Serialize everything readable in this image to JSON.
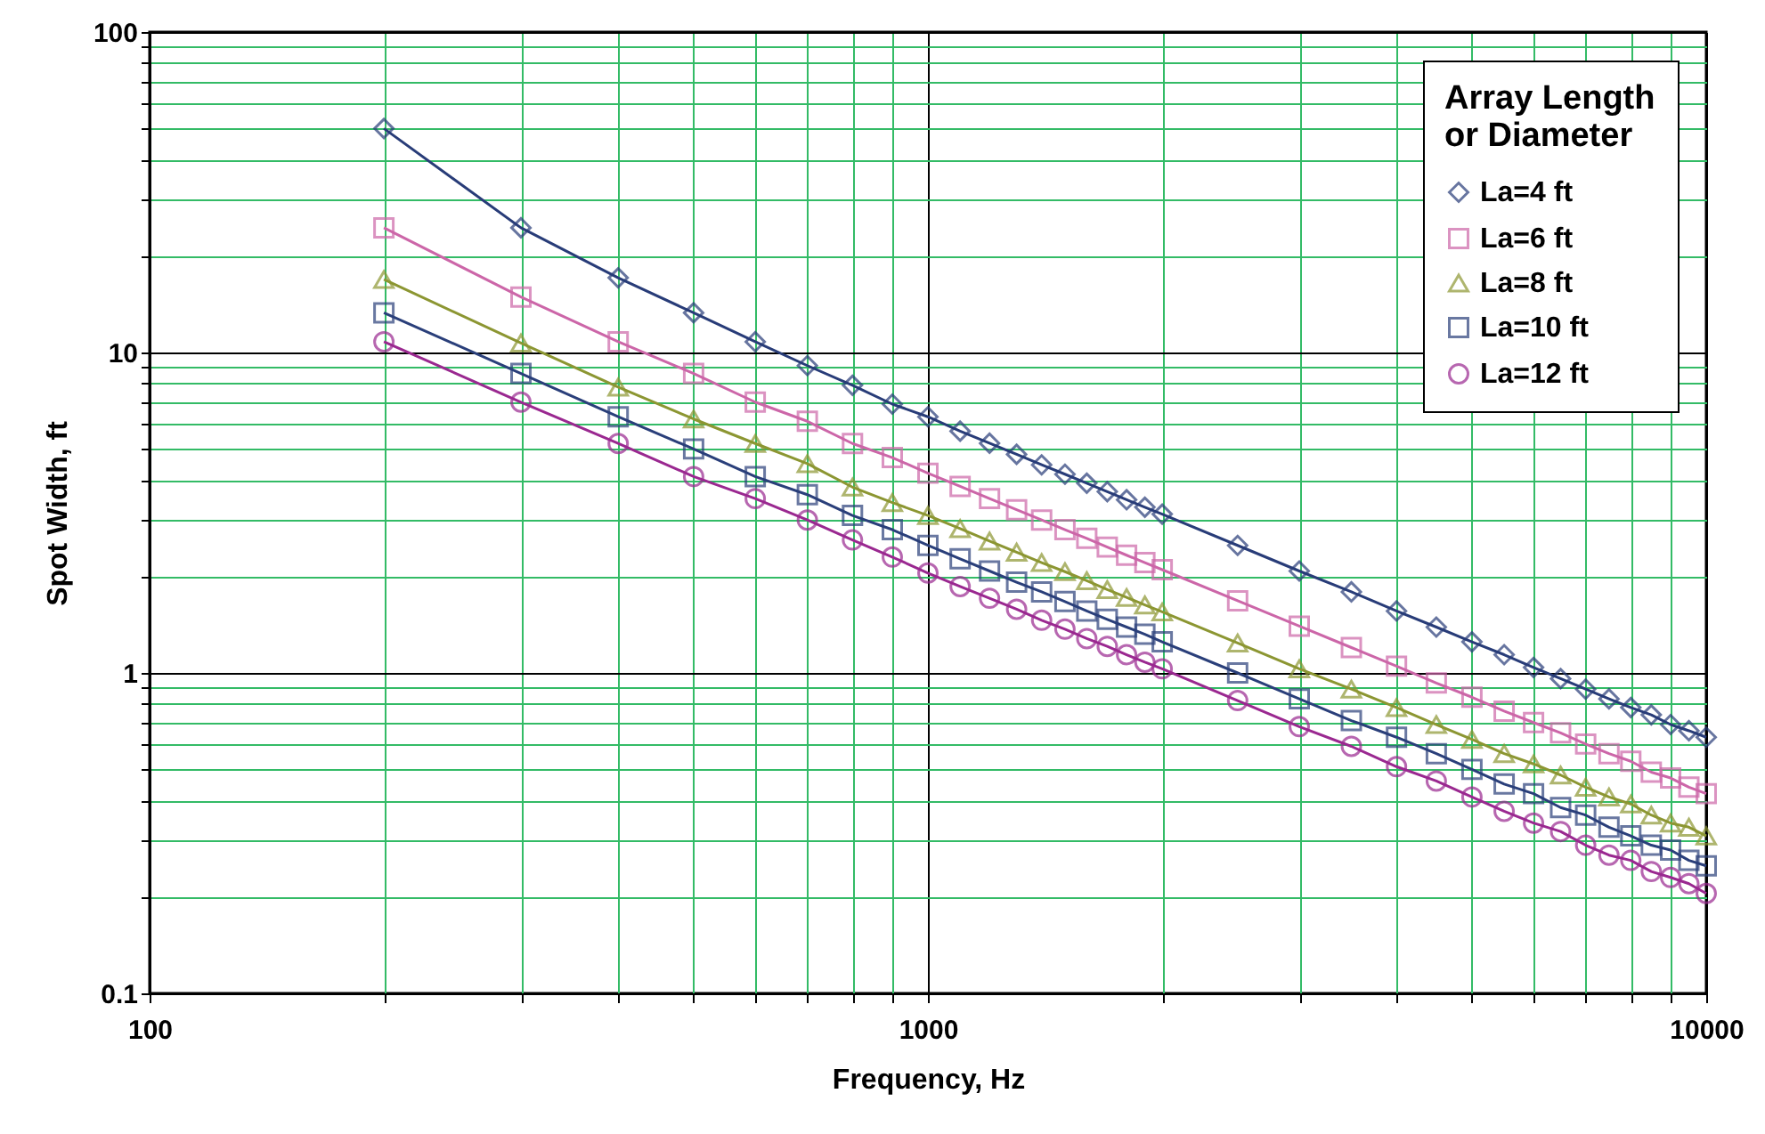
{
  "chart_data": {
    "type": "line",
    "xlabel": "Frequency, Hz",
    "ylabel": "Spot Width, ft",
    "legend_title": "Array Length\nor Diameter",
    "log": "xy",
    "grid": true,
    "legend": "top right",
    "x": [
      200,
      300,
      400,
      500,
      600,
      700,
      800,
      900,
      1000,
      1100,
      1200,
      1300,
      1400,
      1500,
      1600,
      1700,
      1800,
      1900,
      2000,
      2500,
      3000,
      3500,
      4000,
      4500,
      5000,
      5500,
      6000,
      6500,
      7000,
      7500,
      8000,
      8500,
      9000,
      9500,
      10000
    ],
    "xlim": [
      100,
      10000
    ],
    "ylim": [
      0.1,
      100
    ],
    "xticks": [
      100,
      {
        "value": 200,
        "label": null
      },
      {
        "value": 300,
        "label": null
      },
      {
        "value": 400,
        "label": null
      },
      {
        "value": 500,
        "label": null
      },
      {
        "value": 600,
        "label": null
      },
      {
        "value": 700,
        "label": null
      },
      {
        "value": 800,
        "label": null
      },
      {
        "value": 900,
        "label": null
      },
      1000,
      {
        "value": 2000,
        "label": null
      },
      {
        "value": 3000,
        "label": null
      },
      {
        "value": 4000,
        "label": null
      },
      {
        "value": 5000,
        "label": null
      },
      {
        "value": 6000,
        "label": null
      },
      {
        "value": 7000,
        "label": null
      },
      {
        "value": 8000,
        "label": null
      },
      {
        "value": 9000,
        "label": null
      },
      10000
    ],
    "yticks": [
      0.1,
      {
        "value": 0.2,
        "label": null
      },
      {
        "value": 0.3,
        "label": null
      },
      {
        "value": 0.4,
        "label": null
      },
      {
        "value": 0.5,
        "label": null
      },
      {
        "value": 0.6,
        "label": null
      },
      {
        "value": 0.7,
        "label": null
      },
      {
        "value": 0.8,
        "label": null
      },
      {
        "value": 0.9,
        "label": null
      },
      1,
      {
        "value": 2,
        "label": null
      },
      {
        "value": 3,
        "label": null
      },
      {
        "value": 4,
        "label": null
      },
      {
        "value": 5,
        "label": null
      },
      {
        "value": 6,
        "label": null
      },
      {
        "value": 7,
        "label": null
      },
      {
        "value": 8,
        "label": null
      },
      {
        "value": 9,
        "label": null
      },
      10,
      {
        "value": 20,
        "label": null
      },
      {
        "value": 30,
        "label": null
      },
      {
        "value": 40,
        "label": null
      },
      {
        "value": 50,
        "label": null
      },
      {
        "value": 60,
        "label": null
      },
      {
        "value": 70,
        "label": null
      },
      {
        "value": 80,
        "label": null
      },
      {
        "value": 90,
        "label": null
      },
      100
    ],
    "series": [
      {
        "name": "La=4 ft",
        "color": "#283c78",
        "marker": "diamond",
        "values": [
          50,
          24.5,
          17.1,
          13.3,
          10.8,
          9.1,
          7.9,
          6.9,
          6.3,
          5.68,
          5.21,
          4.81,
          4.46,
          4.17,
          3.91,
          3.68,
          3.47,
          3.29,
          3.13,
          2.5,
          2.08,
          1.79,
          1.56,
          1.39,
          1.25,
          1.14,
          1.04,
          0.96,
          0.89,
          0.83,
          0.78,
          0.74,
          0.69,
          0.66,
          0.63
        ]
      },
      {
        "name": "La=6 ft",
        "color": "#cc66a8",
        "marker": "square",
        "values": [
          24.5,
          14.9,
          10.8,
          8.6,
          7.0,
          6.1,
          5.2,
          4.7,
          4.2,
          3.82,
          3.5,
          3.23,
          3.0,
          2.8,
          2.63,
          2.47,
          2.33,
          2.21,
          2.1,
          1.68,
          1.4,
          1.2,
          1.05,
          0.93,
          0.84,
          0.76,
          0.7,
          0.65,
          0.6,
          0.56,
          0.53,
          0.49,
          0.47,
          0.44,
          0.42
        ]
      },
      {
        "name": "La=8 ft",
        "color": "#8c9632",
        "marker": "triangle",
        "values": [
          16.9,
          10.7,
          7.8,
          6.2,
          5.2,
          4.5,
          3.8,
          3.4,
          3.1,
          2.82,
          2.58,
          2.38,
          2.21,
          2.07,
          1.94,
          1.82,
          1.72,
          1.63,
          1.55,
          1.24,
          1.03,
          0.89,
          0.78,
          0.69,
          0.62,
          0.56,
          0.52,
          0.48,
          0.44,
          0.41,
          0.39,
          0.36,
          0.34,
          0.33,
          0.31
        ]
      },
      {
        "name": "La=10 ft",
        "color": "#2a3f7a",
        "marker": "square",
        "values": [
          13.3,
          8.6,
          6.3,
          5.0,
          4.1,
          3.6,
          3.1,
          2.8,
          2.5,
          2.27,
          2.08,
          1.92,
          1.79,
          1.67,
          1.56,
          1.47,
          1.39,
          1.32,
          1.25,
          1.0,
          0.83,
          0.71,
          0.63,
          0.56,
          0.5,
          0.45,
          0.42,
          0.38,
          0.36,
          0.33,
          0.31,
          0.29,
          0.28,
          0.26,
          0.25
        ]
      },
      {
        "name": "La=12 ft",
        "color": "#9a2890",
        "marker": "circle",
        "values": [
          10.8,
          7.0,
          5.2,
          4.1,
          3.5,
          3.0,
          2.6,
          2.3,
          2.05,
          1.86,
          1.71,
          1.58,
          1.46,
          1.37,
          1.28,
          1.21,
          1.14,
          1.08,
          1.03,
          0.82,
          0.68,
          0.59,
          0.51,
          0.46,
          0.41,
          0.37,
          0.34,
          0.32,
          0.29,
          0.27,
          0.26,
          0.24,
          0.23,
          0.22,
          0.205
        ]
      }
    ]
  }
}
